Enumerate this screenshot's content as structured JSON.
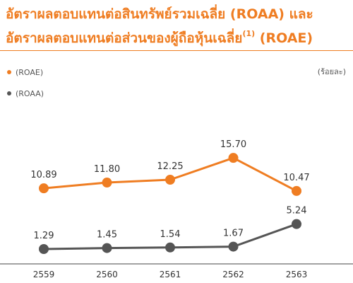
{
  "title": {
    "line1": "อัตราผลตอบแทนต่อสินทรัพย์รวมเฉลี่ย (ROAA) และ",
    "line2_pre": "อัตราผลตอบแทนต่อส่วนของผู้ถือหุ้นเฉลี่ย",
    "line2_sup": "(1)",
    "line2_post": " (ROAE)"
  },
  "colors": {
    "accent": "#ef7d22",
    "roae": "#ef7d22",
    "roaa": "#555555",
    "axis": "#444444"
  },
  "chart_data": {
    "type": "line",
    "unit_label": "(ร้อยละ)",
    "x": [
      "2559",
      "2560",
      "2561",
      "2562",
      "2563"
    ],
    "series": [
      {
        "name": "(ROAE)",
        "color": "#ef7d22",
        "values": [
          10.89,
          11.8,
          12.25,
          15.7,
          10.47
        ],
        "labels": [
          "10.89",
          "11.80",
          "12.25",
          "15.70",
          "10.47"
        ]
      },
      {
        "name": "(ROAA)",
        "color": "#555555",
        "values": [
          1.29,
          1.45,
          1.54,
          1.67,
          5.24
        ],
        "labels": [
          "1.29",
          "1.45",
          "1.54",
          "1.67",
          "5.24"
        ]
      }
    ],
    "legend_position": "top-left",
    "grid": false
  }
}
